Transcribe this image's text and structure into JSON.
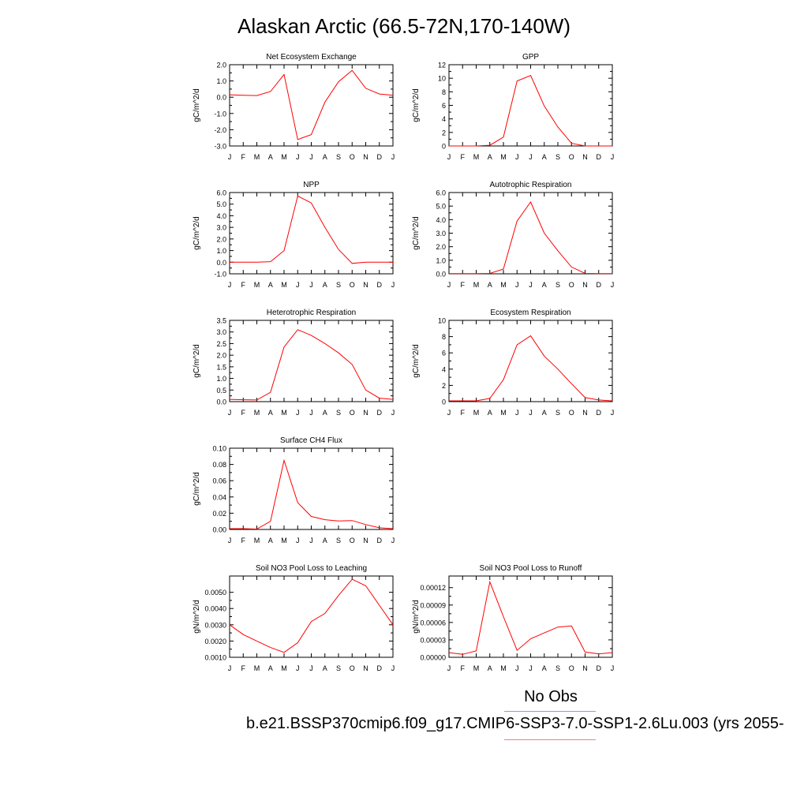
{
  "title": "Alaskan Arctic (66.5-72N,170-140W)",
  "legend": {
    "obs_label": "No Obs",
    "obs_color": "#8c96f0",
    "case_label": "b.e21.BSSP370cmip6.f09_g17.CMIP6-SSP3-7.0-SSP1-2.6Lu.003 (yrs 2055-",
    "case_color": "#ff7a7a"
  },
  "line_color": "#ff0000",
  "months": [
    "J",
    "F",
    "M",
    "A",
    "M",
    "J",
    "J",
    "A",
    "S",
    "O",
    "N",
    "D",
    "J"
  ],
  "chart_data": [
    {
      "type": "line",
      "title": "Net Ecosystem Exchange",
      "ylabel": "gC/m^2/d",
      "ylim": [
        -3.0,
        2.0
      ],
      "yticks": [
        -3.0,
        -2.0,
        -1.0,
        0.0,
        1.0,
        2.0
      ],
      "yticklabels": [
        "-3.0",
        "-2.0",
        "-1.0",
        "0.0",
        "1.0",
        "2.0"
      ],
      "values": [
        0.15,
        0.12,
        0.1,
        0.35,
        1.4,
        -2.6,
        -2.3,
        -0.3,
        0.95,
        1.65,
        0.55,
        0.2,
        0.12
      ]
    },
    {
      "type": "line",
      "title": "GPP",
      "ylabel": "gC/m^2/d",
      "ylim": [
        0,
        12
      ],
      "yticks": [
        0,
        2,
        4,
        6,
        8,
        10,
        12
      ],
      "yticklabels": [
        "0",
        "2",
        "4",
        "6",
        "8",
        "10",
        "12"
      ],
      "values": [
        0,
        0,
        0,
        0.1,
        1.3,
        9.6,
        10.4,
        5.9,
        2.8,
        0.4,
        0,
        0,
        0
      ]
    },
    {
      "type": "line",
      "title": "NPP",
      "ylabel": "gC/m^2/d",
      "ylim": [
        -1.0,
        6.0
      ],
      "yticks": [
        -1.0,
        0.0,
        1.0,
        2.0,
        3.0,
        4.0,
        5.0,
        6.0
      ],
      "yticklabels": [
        "-1.0",
        "0.0",
        "1.0",
        "2.0",
        "3.0",
        "4.0",
        "5.0",
        "6.0"
      ],
      "values": [
        0,
        0,
        0,
        0.05,
        1.0,
        5.7,
        5.1,
        3.0,
        1.1,
        -0.1,
        0,
        0,
        0
      ]
    },
    {
      "type": "line",
      "title": "Autotrophic Respiration",
      "ylabel": "gC/m^2/d",
      "ylim": [
        0,
        6.0
      ],
      "yticks": [
        0,
        1.0,
        2.0,
        3.0,
        4.0,
        5.0,
        6.0
      ],
      "yticklabels": [
        "0.0",
        "1.0",
        "2.0",
        "3.0",
        "4.0",
        "5.0",
        "6.0"
      ],
      "values": [
        0.02,
        0.02,
        0.02,
        0.03,
        0.35,
        3.9,
        5.3,
        3.0,
        1.7,
        0.5,
        0.03,
        0.02,
        0.02
      ]
    },
    {
      "type": "line",
      "title": "Heterotrophic Respiration",
      "ylabel": "gC/m^2/d",
      "ylim": [
        0,
        3.5
      ],
      "yticks": [
        0,
        0.5,
        1.0,
        1.5,
        2.0,
        2.5,
        3.0,
        3.5
      ],
      "yticklabels": [
        "0.0",
        "0.5",
        "1.0",
        "1.5",
        "2.0",
        "2.5",
        "3.0",
        "3.5"
      ],
      "values": [
        0.1,
        0.08,
        0.07,
        0.4,
        2.35,
        3.1,
        2.85,
        2.5,
        2.1,
        1.6,
        0.5,
        0.15,
        0.1
      ]
    },
    {
      "type": "line",
      "title": "Ecosystem Respiration",
      "ylabel": "gC/m^2/d",
      "ylim": [
        0,
        10
      ],
      "yticks": [
        0,
        2,
        4,
        6,
        8,
        10
      ],
      "yticklabels": [
        "0",
        "2",
        "4",
        "6",
        "8",
        "10"
      ],
      "values": [
        0.1,
        0.1,
        0.1,
        0.4,
        2.7,
        7.0,
        8.1,
        5.6,
        4.0,
        2.2,
        0.5,
        0.2,
        0.1
      ]
    },
    {
      "type": "line",
      "title": "Surface CH4 Flux",
      "ylabel": "gC/m^2/d",
      "ylim": [
        0,
        0.1
      ],
      "yticks": [
        0,
        0.02,
        0.04,
        0.06,
        0.08,
        0.1
      ],
      "yticklabels": [
        "0.00",
        "0.02",
        "0.04",
        "0.06",
        "0.08",
        "0.10"
      ],
      "values": [
        0.001,
        0.001,
        0.0005,
        0.01,
        0.085,
        0.033,
        0.016,
        0.012,
        0.0105,
        0.011,
        0.006,
        0.002,
        0.001
      ]
    },
    {
      "type": "line",
      "title": "Soil NO3 Pool Loss to Leaching",
      "ylabel": "gN/m^2/d",
      "ylim": [
        0.001,
        0.006
      ],
      "yticks": [
        0.001,
        0.002,
        0.003,
        0.004,
        0.005
      ],
      "yticklabels": [
        "0.0010",
        "0.0020",
        "0.0030",
        "0.0040",
        "0.0050"
      ],
      "values": [
        0.003,
        0.0024,
        0.002,
        0.0016,
        0.0013,
        0.0019,
        0.0032,
        0.0037,
        0.0048,
        0.0058,
        0.0054,
        0.0042,
        0.003
      ]
    },
    {
      "type": "line",
      "title": "Soil NO3 Pool Loss to Runoff",
      "ylabel": "gN/m^2/d",
      "ylim": [
        0,
        0.00014
      ],
      "yticks": [
        0,
        3e-05,
        6e-05,
        9e-05,
        0.00012
      ],
      "yticklabels": [
        "0.00000",
        "0.00003",
        "0.00006",
        "0.00009",
        "0.00012"
      ],
      "values": [
        8e-06,
        5e-06,
        1.1e-05,
        0.00013,
        7e-05,
        1.2e-05,
        3.2e-05,
        4.2e-05,
        5.2e-05,
        5.4e-05,
        9e-06,
        6e-06,
        8e-06
      ]
    }
  ]
}
